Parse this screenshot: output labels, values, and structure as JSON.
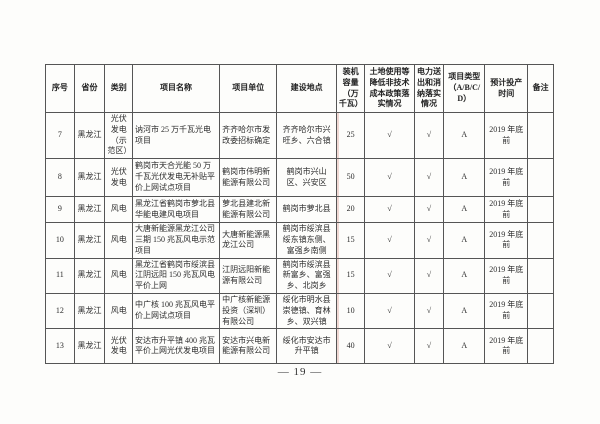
{
  "page": {
    "page_number": "— 19 —"
  },
  "table": {
    "headers": [
      "序号",
      "省份",
      "类别",
      "项目名称",
      "项目单位",
      "建设地点",
      "装机容量（万千瓦）",
      "土地使用等降低非技术成本政策落实情况",
      "电力送出和消纳落实情况",
      "项目类型（A/B/C/D）",
      "预计投产时间",
      "备注"
    ],
    "rows": [
      [
        "7",
        "黑龙江",
        "光伏发电（示范区）",
        "讷河市 25 万千瓦光电项目",
        "齐齐哈尔市发改委招标确定",
        "齐齐哈尔市兴旺乡、六合镇",
        "25",
        "√",
        "√",
        "A",
        "2019 年底前",
        ""
      ],
      [
        "8",
        "黑龙江",
        "光伏发电",
        "鹤岗市天合光能 50 万千瓦光伏发电无补贴平价上网试点项目",
        "鹤岗市伟明新能源有限公司",
        "鹤岗市兴山区、兴安区",
        "50",
        "√",
        "√",
        "A",
        "2019 年底前",
        ""
      ],
      [
        "9",
        "黑龙江",
        "风电",
        "黑龙江省鹤岗市萝北县华能电建风电项目",
        "萝北县建北新能源有限公司",
        "鹤岗市萝北县",
        "20",
        "√",
        "√",
        "A",
        "2019 年底前",
        ""
      ],
      [
        "10",
        "黑龙江",
        "风电",
        "大唐新能源黑龙江公司三期 150 兆瓦风电示范项目",
        "大唐新能源黑龙江公司",
        "鹤岗市绥滨县绥东镇东侧、富强乡南侧",
        "15",
        "√",
        "√",
        "A",
        "2019 年底前",
        ""
      ],
      [
        "11",
        "黑龙江",
        "风电",
        "黑龙江省鹤岗市绥滨县江阴远阳 150 兆瓦风电平价上网",
        "江阴远阳新能源有限公司",
        "鹤岗市绥滨县新富乡、富强乡、北岗乡",
        "15",
        "√",
        "√",
        "A",
        "2019 年底前",
        ""
      ],
      [
        "12",
        "黑龙江",
        "风电",
        "中广核 100 兆瓦风电平价上网试点项目",
        "中广核新能源投资（深圳）有限公司",
        "绥化市明水县崇德镇、育林乡、双兴镇",
        "10",
        "√",
        "√",
        "A",
        "2019 年底前",
        ""
      ],
      [
        "13",
        "黑龙江",
        "光伏发电",
        "安达市升平镇 400 兆瓦平价上网光伏发电项目",
        "安达市兴电新能源有限公司",
        "绥化市安达市升平镇",
        "40",
        "√",
        "√",
        "A",
        "2019 年底前",
        ""
      ]
    ]
  },
  "colors": {
    "paper": "#fdfdfb",
    "ink": "#2d2d2d",
    "border": "#555555"
  }
}
